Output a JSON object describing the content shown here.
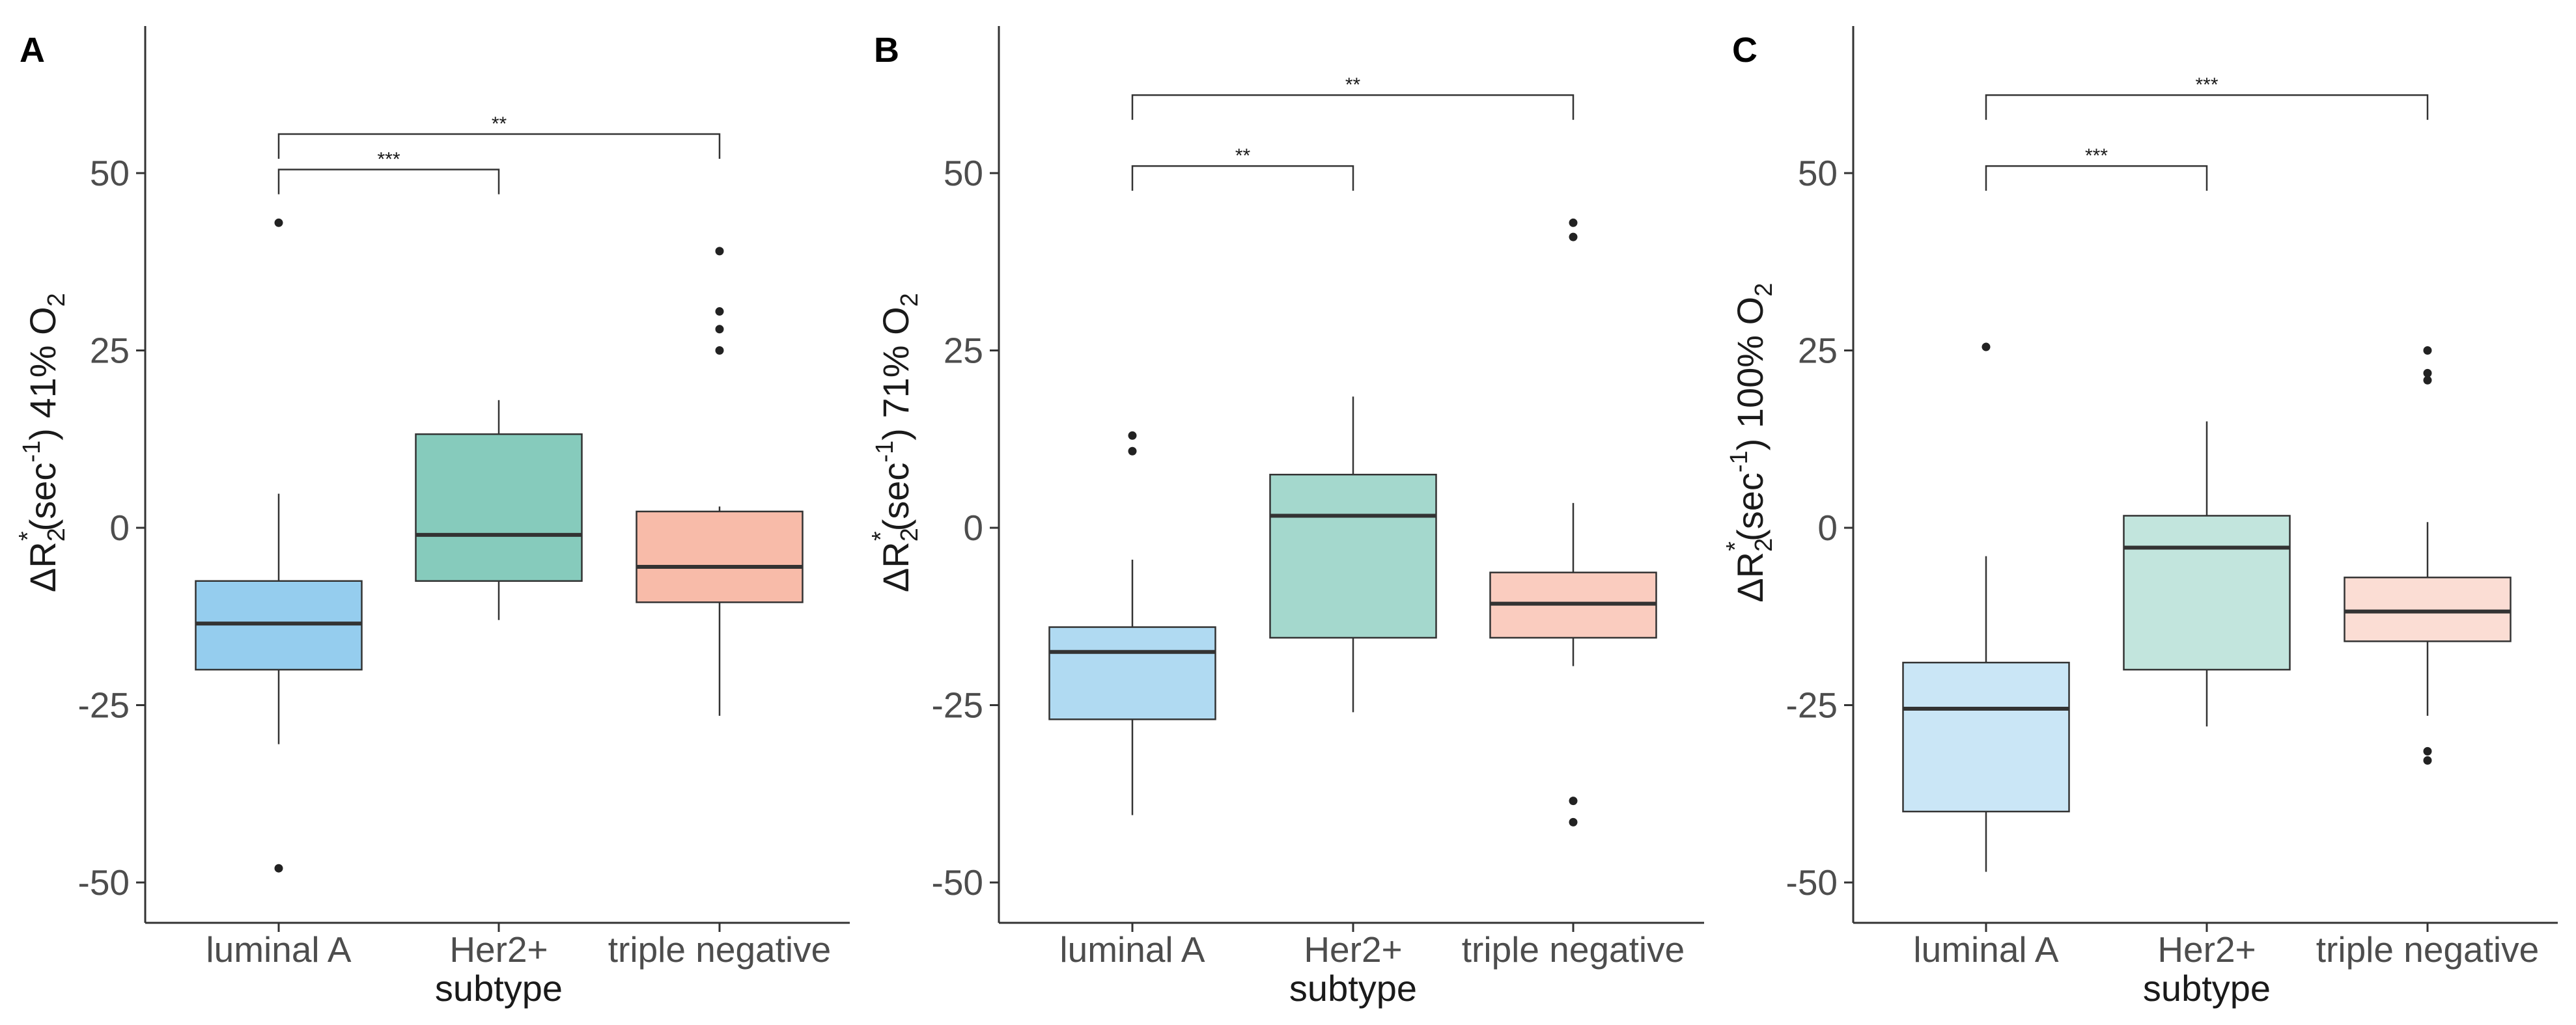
{
  "colors": {
    "luminal_A": "#95cdee",
    "Her2": "#86cbbc",
    "triple_negative": "#f8bba9",
    "axis": "#333333",
    "median": "#333333"
  },
  "chart_data": [
    {
      "type": "box",
      "panel": "A",
      "xlabel": "subtype",
      "ylabel": {
        "delta": "ΔR",
        "sub": "2",
        "sup": "*",
        "mid": "(sec",
        "sup2": "-1",
        "tail": ") 41% O",
        "sub2": "2"
      },
      "ylim": [
        -55,
        72
      ],
      "yticks": [
        50,
        25,
        0,
        -25,
        -50
      ],
      "ytick_labels": [
        "50",
        "25",
        "0",
        "-25",
        "-50"
      ],
      "categories": [
        "luminal A",
        "Her2+",
        "triple negative"
      ],
      "fill_opacity": 1.0,
      "boxes": [
        {
          "q1": -20,
          "median": -13.5,
          "q3": -7.5,
          "whisker_low": -30.5,
          "whisker_high": 4.8,
          "outliers": [
            43,
            -48
          ]
        },
        {
          "q1": -7.5,
          "median": -1,
          "q3": 13.2,
          "whisker_low": -13,
          "whisker_high": 18,
          "outliers": []
        },
        {
          "q1": -10.5,
          "median": -5.5,
          "q3": 2.3,
          "whisker_low": -26.5,
          "whisker_high": 3,
          "outliers": [
            39,
            30.5,
            28,
            25
          ]
        }
      ],
      "significance": [
        {
          "from": 0,
          "to": 1,
          "y": 50.5,
          "label": "***"
        },
        {
          "from": 0,
          "to": 2,
          "y": 55.5,
          "label": "**"
        }
      ]
    },
    {
      "type": "box",
      "panel": "B",
      "xlabel": "subtype",
      "ylabel": {
        "delta": "ΔR",
        "sub": "2",
        "sup": "*",
        "mid": "(sec",
        "sup2": "-1",
        "tail": ") 71% O",
        "sub2": "2"
      },
      "ylim": [
        -55,
        72
      ],
      "yticks": [
        50,
        25,
        0,
        -25,
        -50
      ],
      "ytick_labels": [
        "50",
        "25",
        "0",
        "-25",
        "-50"
      ],
      "categories": [
        "luminal A",
        "Her2+",
        "triple negative"
      ],
      "fill_opacity": 0.75,
      "boxes": [
        {
          "q1": -27,
          "median": -17.5,
          "q3": -14,
          "whisker_low": -40.5,
          "whisker_high": -4.5,
          "outliers": [
            13,
            10.8
          ]
        },
        {
          "q1": -15.5,
          "median": 1.7,
          "q3": 7.5,
          "whisker_low": -26,
          "whisker_high": 18.5,
          "outliers": []
        },
        {
          "q1": -15.5,
          "median": -10.7,
          "q3": -6.3,
          "whisker_low": -19.5,
          "whisker_high": 3.5,
          "outliers": [
            43,
            41,
            -38.5,
            -41.5
          ]
        }
      ],
      "significance": [
        {
          "from": 0,
          "to": 1,
          "y": 51,
          "label": "**"
        },
        {
          "from": 0,
          "to": 2,
          "y": 61,
          "label": "**"
        }
      ]
    },
    {
      "type": "box",
      "panel": "C",
      "xlabel": "subtype",
      "ylabel": {
        "delta": "ΔR",
        "sub": "2",
        "sup": "*",
        "mid": "(sec",
        "sup2": "-1",
        "tail": ") 100% O",
        "sub2": "2"
      },
      "ylim": [
        -55,
        72
      ],
      "yticks": [
        50,
        25,
        0,
        -25,
        -50
      ],
      "ytick_labels": [
        "50",
        "25",
        "0",
        "-25",
        "-50"
      ],
      "categories": [
        "luminal A",
        "Her2+",
        "triple negative"
      ],
      "fill_opacity": 0.5,
      "boxes": [
        {
          "q1": -40,
          "median": -25.5,
          "q3": -19,
          "whisker_low": -48.5,
          "whisker_high": -4,
          "outliers": [
            25.5
          ]
        },
        {
          "q1": -20,
          "median": -2.8,
          "q3": 1.7,
          "whisker_low": -28,
          "whisker_high": 15,
          "outliers": []
        },
        {
          "q1": -16,
          "median": -11.8,
          "q3": -7,
          "whisker_low": -26.5,
          "whisker_high": 0.8,
          "outliers": [
            25,
            21.8,
            20.8,
            -31.5,
            -32.8
          ]
        }
      ],
      "significance": [
        {
          "from": 0,
          "to": 1,
          "y": 51,
          "label": "***"
        },
        {
          "from": 0,
          "to": 2,
          "y": 61,
          "label": "***"
        }
      ]
    }
  ]
}
